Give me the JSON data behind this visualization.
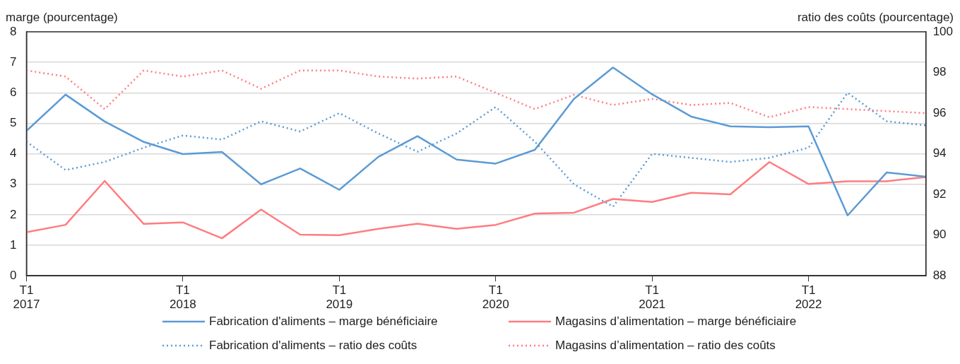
{
  "chart_data": {
    "type": "line",
    "ylabel": "marge (pourcentage)",
    "y2label": "ratio des coûts (pourcentage)",
    "categories": [
      "T1 2017",
      null,
      null,
      null,
      "T1 2018",
      null,
      null,
      null,
      "T1 2019",
      null,
      null,
      null,
      "T1 2020",
      null,
      null,
      null,
      "T1 2021",
      null,
      null,
      null,
      "T1 2022",
      null,
      null,
      null
    ],
    "series": [
      {
        "name": "Fabrication d'aliments – marge bénéficiaire",
        "color": "#5b9bd5",
        "line_style": "solid",
        "values": [
          4.75,
          5.94,
          5.06,
          4.39,
          3.99,
          4.06,
          3.0,
          3.52,
          2.82,
          3.9,
          4.58,
          3.81,
          3.68,
          4.13,
          5.8,
          6.83,
          5.95,
          5.22,
          4.9,
          4.87,
          4.9,
          1.98,
          3.39,
          3.25
        ]
      },
      {
        "name": "Magasins d’alimentation – marge bénéficiaire",
        "color": "#ff7c80",
        "line_style": "solid",
        "values": [
          1.43,
          1.67,
          3.11,
          1.7,
          1.75,
          1.23,
          2.17,
          1.35,
          1.33,
          1.54,
          1.71,
          1.54,
          1.67,
          2.04,
          2.07,
          2.52,
          2.42,
          2.72,
          2.67,
          3.73,
          3.01,
          3.1,
          3.1,
          3.24
        ]
      },
      {
        "name": "Fabrication d'aliments –  ratio des coûts",
        "color": "#5b9bd5",
        "line_style": "dotted",
        "axis": "y2",
        "values": [
          94.6,
          93.2,
          93.6,
          94.3,
          94.9,
          94.7,
          95.6,
          95.1,
          96.0,
          95.0,
          94.1,
          95.0,
          96.3,
          94.6,
          92.5,
          91.4,
          94.0,
          93.8,
          93.6,
          93.8,
          94.3,
          97.0,
          95.6,
          95.4
        ]
      },
      {
        "name": "Magasins d’alimentation – ratio des coûts",
        "color": "#ff7c80",
        "line_style": "dotted",
        "axis": "y2",
        "values": [
          98.1,
          97.8,
          96.2,
          98.1,
          97.8,
          98.1,
          97.2,
          98.1,
          98.1,
          97.8,
          97.7,
          97.8,
          97.0,
          96.2,
          96.9,
          96.4,
          96.7,
          96.4,
          96.5,
          95.8,
          96.3,
          96.2,
          96.1,
          96.0
        ]
      }
    ],
    "ylim": [
      0,
      8
    ],
    "yticks": [
      0,
      1,
      2,
      3,
      4,
      5,
      6,
      7,
      8
    ],
    "y2lim": [
      88,
      100
    ],
    "y2ticks": [
      88,
      90,
      92,
      94,
      96,
      98,
      100
    ],
    "grid": "y",
    "legend": "bottom"
  }
}
